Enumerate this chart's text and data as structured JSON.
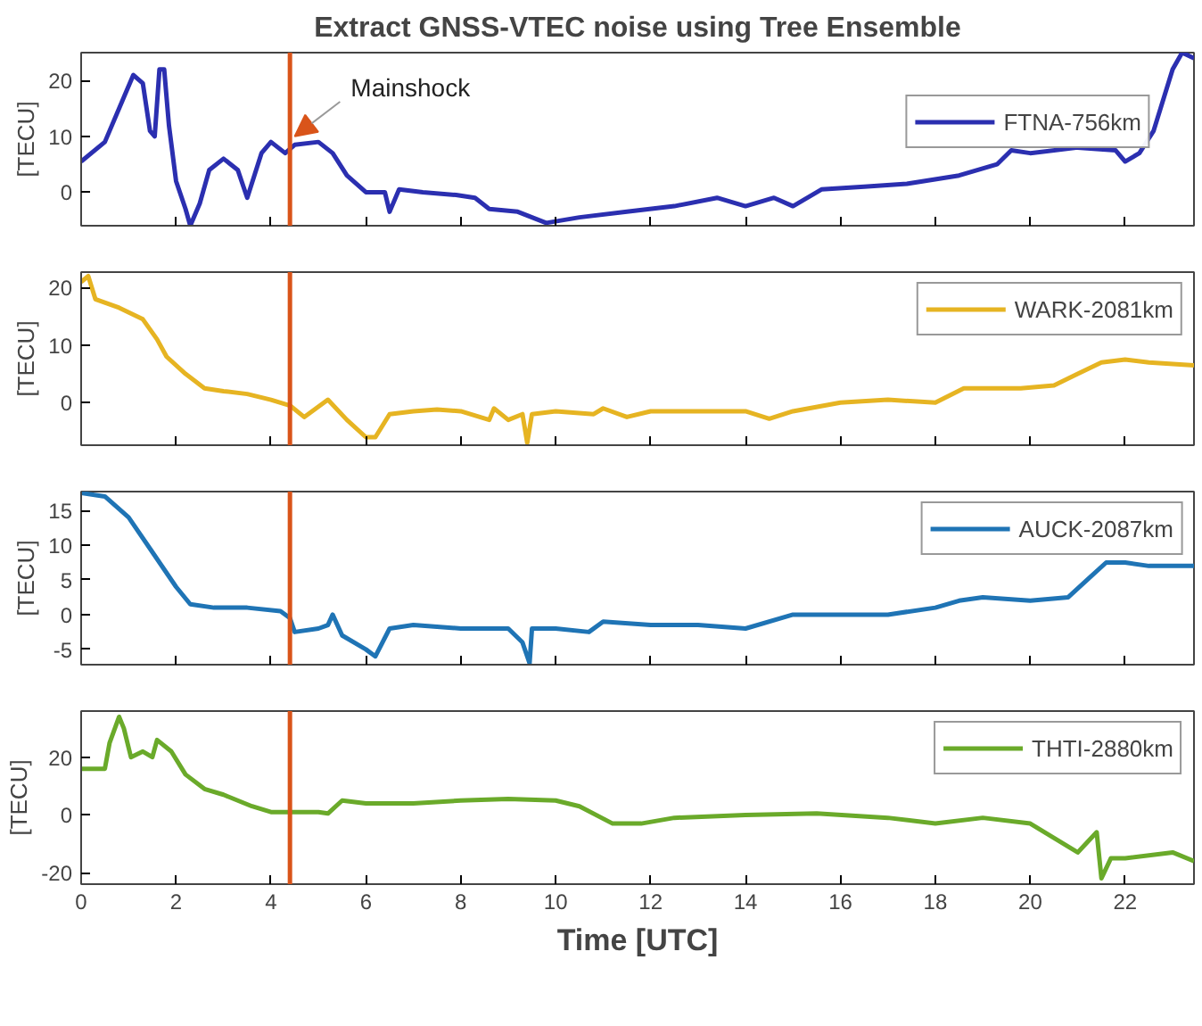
{
  "chart_data": [
    {
      "type": "line",
      "title": "Extract GNSS-VTEC noise using Tree Ensemble",
      "ylabel": "[TECU]",
      "xlim": [
        0,
        23.45
      ],
      "xticks": [
        0,
        2,
        4,
        6,
        8,
        10,
        12,
        14,
        16,
        18,
        20,
        22
      ],
      "ylim": [
        -6,
        25
      ],
      "yticks": [
        0,
        10,
        20
      ],
      "tick_labels": "y",
      "legend": "top right",
      "grid": false,
      "ref_lines": [
        {
          "axis": "x",
          "value": 4.4,
          "color": "#d9541a"
        }
      ],
      "annotations": [
        {
          "text": "Mainshock",
          "x": 4.4,
          "y": 10
        }
      ],
      "series": [
        {
          "name": "FTNA-756km",
          "color": "#2b2fb0",
          "x": [
            0,
            0.5,
            0.9,
            1.1,
            1.3,
            1.45,
            1.55,
            1.65,
            1.75,
            1.85,
            2.0,
            2.2,
            2.3,
            2.5,
            2.7,
            3.0,
            3.3,
            3.5,
            3.8,
            4.0,
            4.3,
            4.5,
            5.0,
            5.3,
            5.6,
            6.0,
            6.4,
            6.5,
            6.7,
            7.2,
            7.9,
            8.3,
            8.6,
            9.2,
            9.8,
            10.5,
            11.5,
            12.5,
            13.4,
            14.0,
            14.6,
            15.0,
            15.6,
            16.5,
            17.4,
            18.5,
            19.3,
            19.6,
            20.0,
            21.0,
            21.8,
            22.0,
            22.3,
            22.6,
            23.0,
            23.2,
            23.45
          ],
          "values": [
            5.5,
            9,
            17,
            21,
            19.5,
            11,
            10,
            22,
            22,
            12,
            2,
            -3,
            -6,
            -2,
            4,
            6,
            4,
            -1,
            7,
            9,
            7,
            8.5,
            9,
            7,
            3,
            0,
            0,
            -3.5,
            0.5,
            0,
            -0.5,
            -1,
            -3,
            -3.5,
            -5.5,
            -4.5,
            -3.5,
            -2.5,
            -1,
            -2.5,
            -1,
            -2.5,
            0.5,
            1,
            1.5,
            3,
            5,
            7.5,
            7,
            8,
            7.5,
            5.5,
            7,
            11,
            22,
            25,
            24
          ]
        }
      ]
    },
    {
      "type": "line",
      "ylabel": "[TECU]",
      "xlim": [
        0,
        23.45
      ],
      "xticks": [
        0,
        2,
        4,
        6,
        8,
        10,
        12,
        14,
        16,
        18,
        20,
        22
      ],
      "ylim": [
        -7.4,
        22.7
      ],
      "yticks": [
        0,
        10,
        20
      ],
      "tick_labels": "y",
      "legend": "top right",
      "grid": false,
      "ref_lines": [
        {
          "axis": "x",
          "value": 4.4,
          "color": "#d9541a"
        }
      ],
      "series": [
        {
          "name": "WARK-2081km",
          "color": "#e6b422",
          "x": [
            0,
            0.15,
            0.3,
            0.8,
            1.3,
            1.6,
            1.8,
            2.2,
            2.6,
            3.0,
            3.5,
            4.0,
            4.4,
            4.7,
            5.2,
            5.6,
            6.0,
            6.2,
            6.5,
            7.0,
            7.5,
            8.0,
            8.6,
            8.7,
            9.0,
            9.3,
            9.4,
            9.5,
            10.0,
            10.8,
            11.0,
            11.5,
            12.0,
            13.0,
            14.0,
            14.5,
            15.0,
            16.0,
            17.0,
            18.0,
            18.6,
            19.8,
            20.5,
            21.0,
            21.5,
            22.0,
            22.5,
            23.45
          ],
          "values": [
            21,
            22,
            18,
            16.5,
            14.5,
            11,
            8,
            5,
            2.5,
            2,
            1.5,
            0.5,
            -0.5,
            -2.5,
            0.5,
            -3,
            -6,
            -6,
            -2,
            -1.5,
            -1.2,
            -1.5,
            -3,
            -1,
            -3,
            -2,
            -7,
            -2,
            -1.5,
            -2,
            -1,
            -2.5,
            -1.5,
            -1.5,
            -1.5,
            -2.8,
            -1.5,
            0,
            0.5,
            0,
            2.5,
            2.5,
            3,
            5,
            7,
            7.5,
            7,
            6.5
          ]
        }
      ]
    },
    {
      "type": "line",
      "ylabel": "[TECU]",
      "xlim": [
        0,
        23.45
      ],
      "xticks": [
        0,
        2,
        4,
        6,
        8,
        10,
        12,
        14,
        16,
        18,
        20,
        22
      ],
      "ylim": [
        -7.2,
        17.7
      ],
      "yticks": [
        -5,
        0,
        5,
        10,
        15
      ],
      "tick_labels": "y",
      "legend": "top right",
      "grid": false,
      "ref_lines": [
        {
          "axis": "x",
          "value": 4.4,
          "color": "#d9541a"
        }
      ],
      "series": [
        {
          "name": "AUCK-2087km",
          "color": "#1f74b5",
          "x": [
            0,
            0.5,
            1.0,
            1.5,
            2.0,
            2.3,
            2.8,
            3.5,
            4.2,
            4.4,
            4.5,
            5.0,
            5.2,
            5.3,
            5.5,
            6.0,
            6.2,
            6.5,
            7.0,
            8.0,
            9.0,
            9.3,
            9.45,
            9.5,
            10.0,
            10.7,
            11.0,
            12.0,
            13.0,
            14.0,
            15.0,
            16.0,
            17.0,
            18.0,
            18.5,
            19.0,
            20.0,
            20.8,
            21.2,
            21.6,
            22.0,
            22.5,
            23.45
          ],
          "values": [
            17.5,
            17,
            14,
            9,
            4,
            1.5,
            1,
            1,
            0.5,
            -0.5,
            -2.5,
            -2,
            -1.5,
            0,
            -3,
            -5,
            -6,
            -2,
            -1.5,
            -2,
            -2,
            -4,
            -7,
            -2,
            -2,
            -2.5,
            -1,
            -1.5,
            -1.5,
            -2,
            0,
            0,
            0,
            1,
            2,
            2.5,
            2,
            2.5,
            5,
            7.5,
            7.5,
            7,
            7
          ]
        }
      ]
    },
    {
      "type": "line",
      "ylabel": "[TECU]",
      "xlabel": "Time [UTC]",
      "xlim": [
        0,
        23.45
      ],
      "xticks": [
        0,
        2,
        4,
        6,
        8,
        10,
        12,
        14,
        16,
        18,
        20,
        22
      ],
      "ylim": [
        -24,
        36
      ],
      "yticks": [
        -20,
        0,
        20
      ],
      "legend": "top right",
      "grid": false,
      "ref_lines": [
        {
          "axis": "x",
          "value": 4.4,
          "color": "#d9541a"
        }
      ],
      "series": [
        {
          "name": "THTI-2880km",
          "color": "#6aaa2a",
          "x": [
            0,
            0.5,
            0.6,
            0.8,
            0.9,
            1.05,
            1.3,
            1.5,
            1.6,
            1.9,
            2.2,
            2.6,
            3.0,
            3.6,
            4.0,
            4.4,
            5.0,
            5.2,
            5.5,
            6.0,
            7.0,
            8.0,
            9.0,
            10.0,
            10.5,
            11.2,
            11.8,
            12.5,
            14.0,
            15.5,
            17.0,
            18.0,
            19.0,
            20.0,
            21.0,
            21.4,
            21.5,
            21.7,
            22.0,
            23.0,
            23.45
          ],
          "values": [
            16,
            16,
            25,
            34,
            30,
            20,
            22,
            20,
            26,
            22,
            14,
            9,
            7,
            3,
            1,
            1,
            1,
            0.5,
            5,
            4,
            4,
            5,
            5.5,
            5,
            3,
            -3,
            -3,
            -1,
            0,
            0.5,
            -1,
            -3,
            -1,
            -3,
            -13,
            -6,
            -22,
            -15,
            -15,
            -13,
            -16
          ]
        }
      ]
    }
  ]
}
